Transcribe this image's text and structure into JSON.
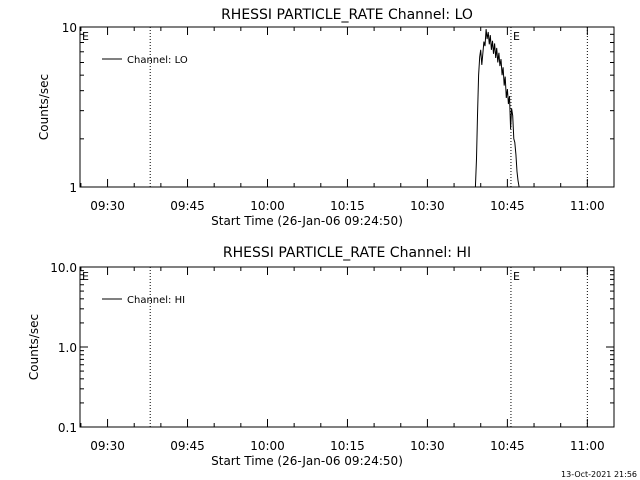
{
  "footer": {
    "timestamp": "13-Oct-2021 21:56"
  },
  "chart_data": [
    {
      "type": "line",
      "title": "RHESSI PARTICLE_RATE Channel: LO",
      "xlabel": "Start Time (26-Jan-06 09:24:50)",
      "ylabel": "Counts/sec",
      "yscale": "log",
      "ylim": [
        1,
        10
      ],
      "y_ticks": [
        1,
        10
      ],
      "y_tick_labels": [
        "1",
        "10"
      ],
      "xlim": [
        "09:24:50",
        "11:05:00"
      ],
      "x_ticks": [
        "09:30",
        "09:45",
        "10:00",
        "10:15",
        "10:30",
        "10:45",
        "11:00"
      ],
      "x_tick_minutes": [
        570,
        585,
        600,
        615,
        630,
        645,
        660
      ],
      "xlim_minutes": [
        564.83,
        665.0
      ],
      "legend": {
        "entries": [
          "Channel: LO"
        ],
        "placement": "top-left"
      },
      "markers": [
        {
          "label": "E",
          "x": "09:24:50",
          "x_minutes": 564.83
        },
        {
          "label": "E",
          "x": "10:45:40",
          "x_minutes": 645.67
        }
      ],
      "dotted_lines_minutes": [
        578.0,
        645.67,
        660.0
      ],
      "series": [
        {
          "name": "Channel: LO",
          "x_minutes": [
            639.0,
            639.2,
            639.4,
            639.6,
            639.8,
            640.0,
            640.2,
            640.4,
            640.6,
            640.8,
            641.0,
            641.2,
            641.4,
            641.6,
            641.8,
            642.0,
            642.2,
            642.4,
            642.6,
            642.8,
            643.0,
            643.2,
            643.4,
            643.6,
            643.8,
            644.0,
            644.2,
            644.4,
            644.6,
            644.8,
            645.0,
            645.2,
            645.4,
            645.6,
            645.8,
            646.0,
            646.2,
            646.4,
            646.6,
            646.8,
            647.0,
            647.2,
            647.4,
            647.6
          ],
          "values": [
            1.0,
            1.5,
            2.8,
            5.0,
            6.5,
            7.2,
            5.8,
            6.9,
            8.1,
            7.6,
            9.7,
            8.4,
            9.3,
            7.8,
            8.9,
            7.2,
            8.2,
            6.8,
            7.9,
            6.4,
            7.4,
            6.0,
            6.9,
            5.7,
            6.3,
            5.0,
            5.6,
            4.3,
            4.9,
            3.6,
            4.1,
            3.3,
            3.7,
            2.3,
            3.1,
            2.8,
            2.0,
            1.9,
            1.6,
            1.25,
            1.1,
            1.0,
            1.0,
            1.0
          ]
        }
      ]
    },
    {
      "type": "line",
      "title": "RHESSI PARTICLE_RATE Channel: HI",
      "xlabel": "Start Time (26-Jan-06 09:24:50)",
      "ylabel": "Counts/sec",
      "yscale": "log",
      "ylim": [
        0.1,
        10
      ],
      "y_ticks": [
        0.1,
        1.0,
        10.0
      ],
      "y_tick_labels": [
        "0.1",
        "1.0",
        "10.0"
      ],
      "xlim": [
        "09:24:50",
        "11:05:00"
      ],
      "x_ticks": [
        "09:30",
        "09:45",
        "10:00",
        "10:15",
        "10:30",
        "10:45",
        "11:00"
      ],
      "x_tick_minutes": [
        570,
        585,
        600,
        615,
        630,
        645,
        660
      ],
      "xlim_minutes": [
        564.83,
        665.0
      ],
      "legend": {
        "entries": [
          "Channel: HI"
        ],
        "placement": "top-left"
      },
      "markers": [
        {
          "label": "E",
          "x": "09:24:50",
          "x_minutes": 564.83
        },
        {
          "label": "E",
          "x": "10:45:40",
          "x_minutes": 645.67
        }
      ],
      "dotted_lines_minutes": [
        578.0,
        645.67,
        660.0
      ],
      "series": [
        {
          "name": "Channel: HI",
          "x_minutes": [],
          "values": []
        }
      ]
    }
  ]
}
